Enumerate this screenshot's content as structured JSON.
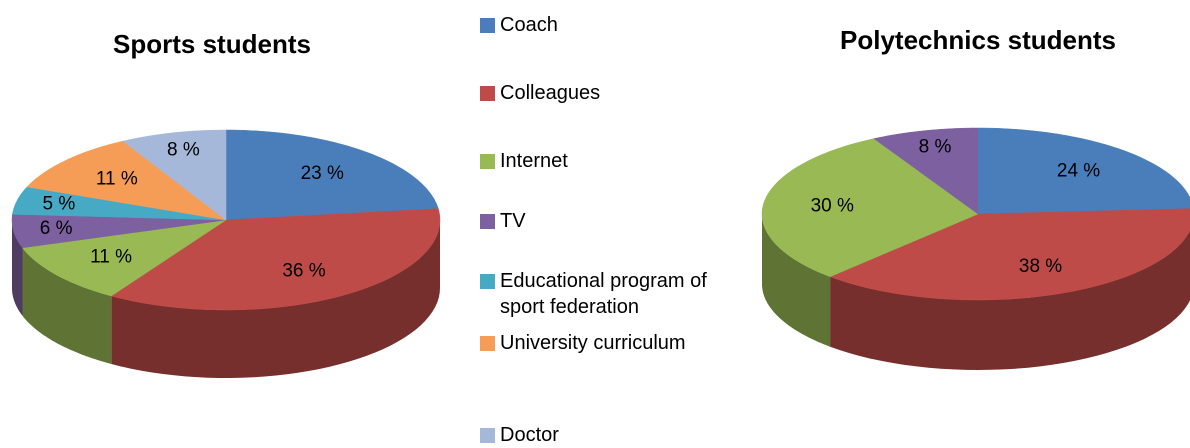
{
  "legend": [
    {
      "name": "Coach",
      "color": "#4a7ebb"
    },
    {
      "name": "Colleagues",
      "color": "#be4b48"
    },
    {
      "name": "Internet",
      "color": "#98b954"
    },
    {
      "name": "TV",
      "color": "#7d60a0"
    },
    {
      "name": "Educational program of sport federation",
      "color": "#46aac5"
    },
    {
      "name": "University curriculum",
      "color": "#f59d56"
    },
    {
      "name": "Doctor",
      "color": "#a5b8d9"
    }
  ],
  "chart_data": [
    {
      "type": "pie",
      "title": "Sports students",
      "values": [
        23,
        36,
        11,
        6,
        5,
        11,
        8
      ],
      "value_labels": [
        "23 %",
        "36 %",
        "11 %",
        "6 %",
        "5 %",
        "11 %",
        "8 %"
      ]
    },
    {
      "type": "pie",
      "title": "Polytechnics students",
      "values": [
        24,
        38,
        30,
        8
      ],
      "value_labels": [
        "24 %",
        "38 %",
        "30 %",
        "8 %"
      ]
    }
  ]
}
